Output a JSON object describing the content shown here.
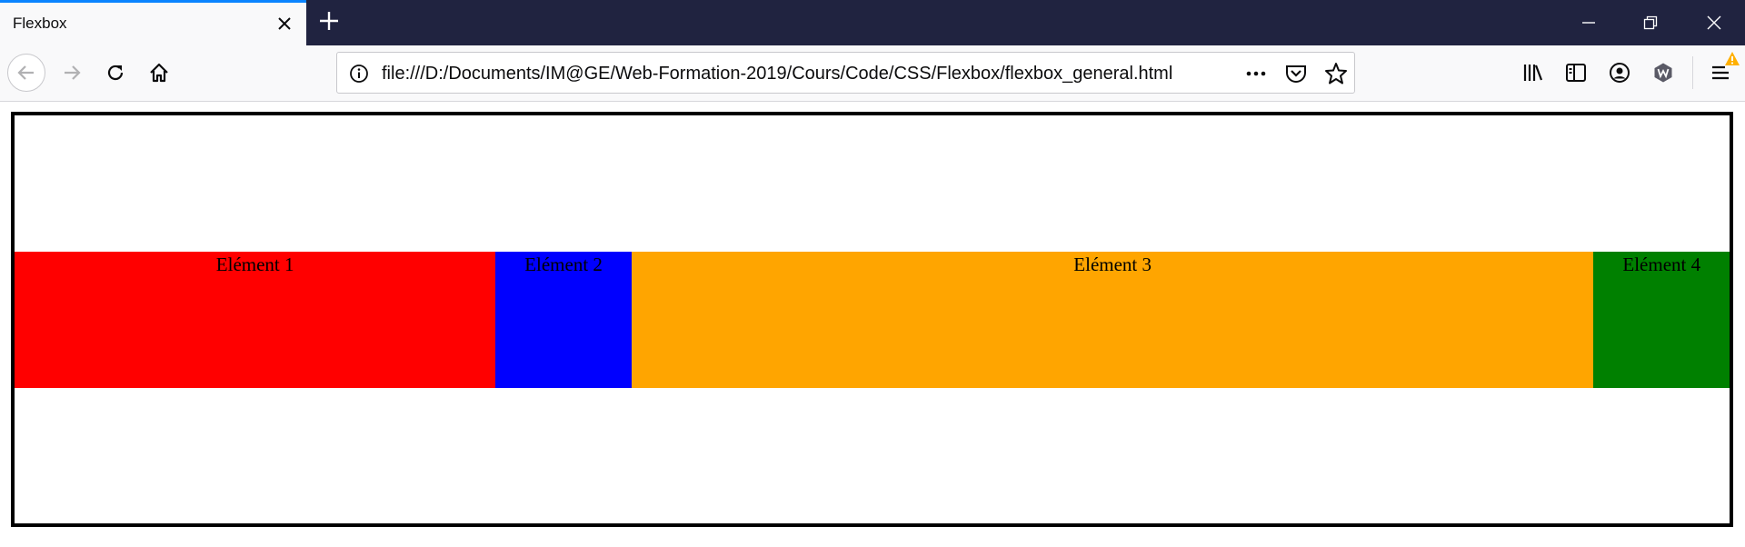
{
  "browser": {
    "tab": {
      "title": "Flexbox"
    },
    "url": "file:///D:/Documents/IM@GE/Web-Formation-2019/Cours/Code/CSS/Flexbox/flexbox_general.html",
    "toolbar_icons": [
      "back-arrow-icon",
      "forward-arrow-icon",
      "reload-icon",
      "home-icon",
      "info-icon",
      "more-actions-icon",
      "pocket-icon",
      "bookmark-star-icon",
      "library-icon",
      "sidebar-icon",
      "account-icon",
      "extension-icon",
      "menu-icon",
      "warning-icon"
    ]
  },
  "page": {
    "items": [
      {
        "label": "Elément 1",
        "color": "#ff0000",
        "flex": 3.54
      },
      {
        "label": "Elément 2",
        "color": "#0000ff",
        "flex": 1
      },
      {
        "label": "Elément 3",
        "color": "#ffa500",
        "flex": 7.08
      },
      {
        "label": "Elément 4",
        "color": "#008000",
        "flex": 1
      }
    ]
  }
}
